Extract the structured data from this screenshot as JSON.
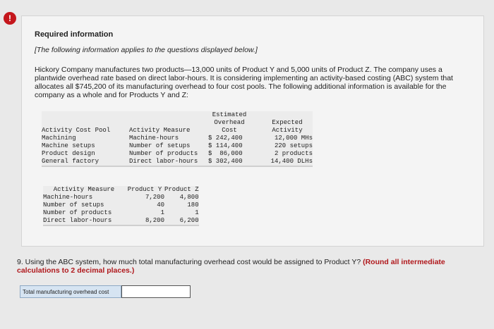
{
  "alert_icon": "!",
  "info": {
    "title": "Required information",
    "note": "[The following information applies to the questions displayed below.]",
    "intro": "Hickory Company manufactures two products—13,000 units of Product Y and 5,000 units of Product Z. The company uses a plantwide overhead rate based on direct labor-hours. It is considering implementing an activity-based costing (ABC) system that allocates all $745,200 of its manufacturing overhead to four cost pools. The following additional information is available for the company as a whole and for Products Y and Z:"
  },
  "table1": {
    "headers": [
      "Activity Cost Pool",
      "Activity Measure",
      "Estimated Overhead Cost",
      "Expected Activity"
    ],
    "header_estimated": [
      "Estimated",
      "Overhead",
      "Cost"
    ],
    "header_expected": [
      "Expected",
      "Activity"
    ],
    "rows": [
      {
        "pool": "Machining",
        "measure": "Machine-hours",
        "cost": "$ 242,400",
        "activity": "12,000 MHs"
      },
      {
        "pool": "Machine setups",
        "measure": "Number of setups",
        "cost": "$ 114,400",
        "activity": "220 setups"
      },
      {
        "pool": "Product design",
        "measure": "Number of products",
        "cost": "$  86,000",
        "activity": "2 products"
      },
      {
        "pool": "General factory",
        "measure": "Direct labor-hours",
        "cost": "$ 302,400",
        "activity": "14,400 DLHs"
      }
    ]
  },
  "table2": {
    "headers": [
      "Activity Measure",
      "Product Y",
      "Product Z"
    ],
    "rows": [
      {
        "measure": "Machine-hours",
        "y": "7,200",
        "z": "4,800"
      },
      {
        "measure": "Number of setups",
        "y": "40",
        "z": "180"
      },
      {
        "measure": "Number of products",
        "y": "1",
        "z": "1"
      },
      {
        "measure": "Direct labor-hours",
        "y": "8,200",
        "z": "6,200"
      }
    ]
  },
  "question": {
    "text": "9. Using the ABC system, how much total manufacturing overhead cost would be assigned to Product Y?",
    "hint": "(Round all intermediate calculations to 2 decimal places.)"
  },
  "answer": {
    "label": "Total manufacturing overhead cost",
    "value": ""
  }
}
